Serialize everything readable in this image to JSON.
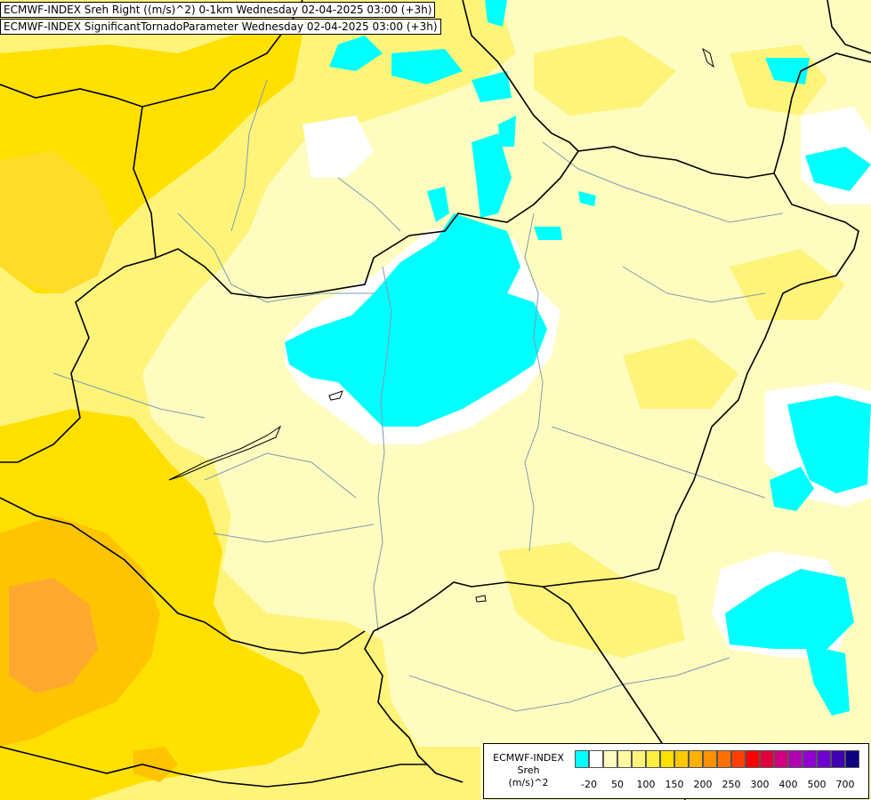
{
  "header": {
    "line1": "ECMWF-INDEX Sreh Right ((m/s)^2) 0-1km Wednesday 02-04-2025 03:00 (+3h)",
    "line2": "ECMWF-INDEX SignificantTornadoParameter Wednesday 02-04-2025 03:00 (+3h)"
  },
  "legend": {
    "title_lines": [
      "ECMWF-INDEX",
      "Sreh",
      "(m/s)^2"
    ],
    "colors": [
      "#00ffff",
      "#ffffff",
      "#fffcc0",
      "#fffaa0",
      "#fff47a",
      "#ffef40",
      "#ffe000",
      "#ffc800",
      "#ffb000",
      "#ff9000",
      "#ff7000",
      "#ff4000",
      "#ff0000",
      "#e0003c",
      "#d00080",
      "#b000b0",
      "#9000d0",
      "#7000d0",
      "#4000b0",
      "#100080"
    ],
    "ticks": [
      "-20",
      "50",
      "100",
      "150",
      "200",
      "250",
      "300",
      "400",
      "500",
      "700"
    ]
  },
  "colors": {
    "pale": "#fffcc0",
    "light_yellow": "#fff47a",
    "yellow": "#ffe000",
    "orange": "#ffc000",
    "dark_orange": "#ffa030",
    "cyan": "#00ffff",
    "white": "#ffffff",
    "border": "#000000",
    "river": "#7d9cb0"
  }
}
